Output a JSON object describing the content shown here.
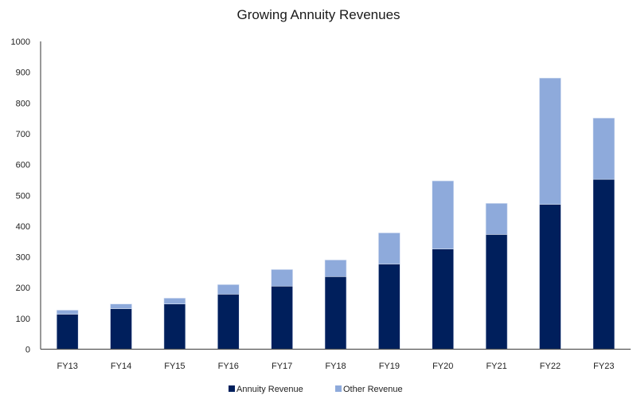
{
  "chart_data": {
    "type": "bar",
    "stacked": true,
    "title": "Growing Annuity Revenues",
    "xlabel": "",
    "ylabel": "",
    "ylim": [
      0,
      1000
    ],
    "yticks": [
      "0",
      "100",
      "200",
      "300",
      "400",
      "500",
      "600",
      "700",
      "800",
      "900",
      "1000"
    ],
    "ytick_values": [
      0,
      100,
      200,
      300,
      400,
      500,
      600,
      700,
      800,
      900,
      1000
    ],
    "grid": false,
    "legend_position": "bottom",
    "categories": [
      "FY13",
      "FY14",
      "FY15",
      "FY16",
      "FY17",
      "FY18",
      "FY19",
      "FY20",
      "FY21",
      "FY22",
      "FY23"
    ],
    "series": [
      {
        "name": "Annuity Revenue",
        "color": "#001F5C",
        "values": [
          114,
          132,
          147,
          179,
          205,
          236,
          277,
          326,
          373,
          471,
          552
        ]
      },
      {
        "name": "Other Revenue",
        "color": "#8EAADB",
        "values": [
          13,
          15,
          19,
          31,
          54,
          54,
          101,
          221,
          101,
          410,
          199
        ]
      }
    ]
  }
}
